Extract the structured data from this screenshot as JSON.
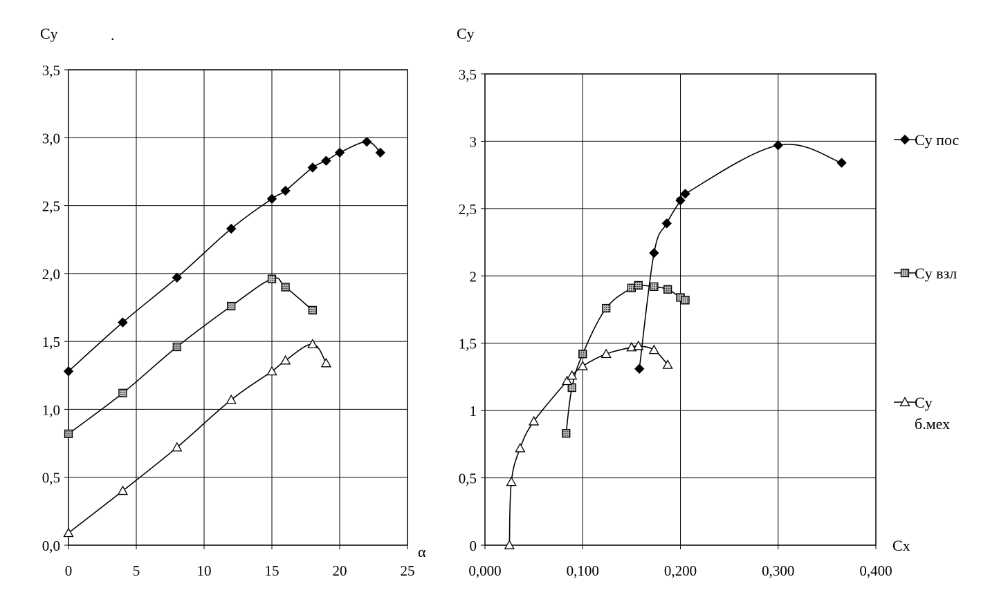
{
  "chart_data": [
    {
      "type": "line",
      "title": "",
      "ylabel": "Cy",
      "xlabel": "α",
      "stray_mark": ".",
      "xlim": [
        0,
        25
      ],
      "ylim": [
        0,
        3.5
      ],
      "x_ticks": [
        0,
        5,
        10,
        15,
        20,
        25
      ],
      "y_ticks": [
        0,
        0.5,
        1.0,
        1.5,
        2.0,
        2.5,
        3.0,
        3.5
      ],
      "x_tick_labels": [
        "0",
        "5",
        "10",
        "15",
        "20",
        "25"
      ],
      "y_tick_labels": [
        "0,0",
        "0,5",
        "1,0",
        "1,5",
        "2,0",
        "2,5",
        "3,0",
        "3,5"
      ],
      "grid": true,
      "series": [
        {
          "marker": "diamond",
          "x": [
            0,
            4,
            8,
            12,
            15,
            16,
            18,
            19,
            20,
            22,
            23
          ],
          "y": [
            1.28,
            1.64,
            1.97,
            2.33,
            2.55,
            2.61,
            2.78,
            2.83,
            2.89,
            2.97,
            2.89
          ]
        },
        {
          "marker": "square",
          "x": [
            0,
            4,
            8,
            12,
            15,
            16,
            18
          ],
          "y": [
            0.82,
            1.12,
            1.46,
            1.76,
            1.96,
            1.9,
            1.73
          ]
        },
        {
          "marker": "triangle",
          "x": [
            0,
            4,
            8,
            12,
            15,
            16,
            18,
            19
          ],
          "y": [
            0.09,
            0.4,
            0.72,
            1.07,
            1.28,
            1.36,
            1.48,
            1.34
          ]
        }
      ]
    },
    {
      "type": "line",
      "title": "",
      "ylabel": "Cy",
      "xlabel": "Cx",
      "xlim": [
        0,
        0.4
      ],
      "ylim": [
        0,
        3.5
      ],
      "x_ticks": [
        0,
        0.1,
        0.2,
        0.3,
        0.4
      ],
      "y_ticks": [
        0,
        0.5,
        1,
        1.5,
        2,
        2.5,
        3,
        3.5
      ],
      "x_tick_labels": [
        "0,000",
        "0,100",
        "0,200",
        "0,300",
        "0,400"
      ],
      "y_tick_labels": [
        "0",
        "0,5",
        "1",
        "1,5",
        "2",
        "2,5",
        "3",
        "3,5"
      ],
      "grid": true,
      "legend": "right",
      "series": [
        {
          "name": "Cy пос",
          "marker": "diamond",
          "x": [
            0.158,
            0.173,
            0.186,
            0.2,
            0.205,
            0.3,
            0.365
          ],
          "y": [
            1.31,
            2.17,
            2.39,
            2.56,
            2.61,
            2.97,
            2.84
          ]
        },
        {
          "name": "Cy взл",
          "marker": "square",
          "x": [
            0.083,
            0.089,
            0.1,
            0.124,
            0.15,
            0.157,
            0.173,
            0.187,
            0.2,
            0.205
          ],
          "y": [
            0.83,
            1.17,
            1.42,
            1.76,
            1.91,
            1.93,
            1.92,
            1.9,
            1.84,
            1.82
          ]
        },
        {
          "name": "Cy\nб.мех",
          "marker": "triangle",
          "x": [
            0.025,
            0.027,
            0.036,
            0.05,
            0.084,
            0.089,
            0.1,
            0.124,
            0.15,
            0.157,
            0.173,
            0.187
          ],
          "y": [
            0.0,
            0.47,
            0.72,
            0.92,
            1.22,
            1.26,
            1.33,
            1.42,
            1.47,
            1.48,
            1.45,
            1.34
          ]
        }
      ]
    }
  ]
}
